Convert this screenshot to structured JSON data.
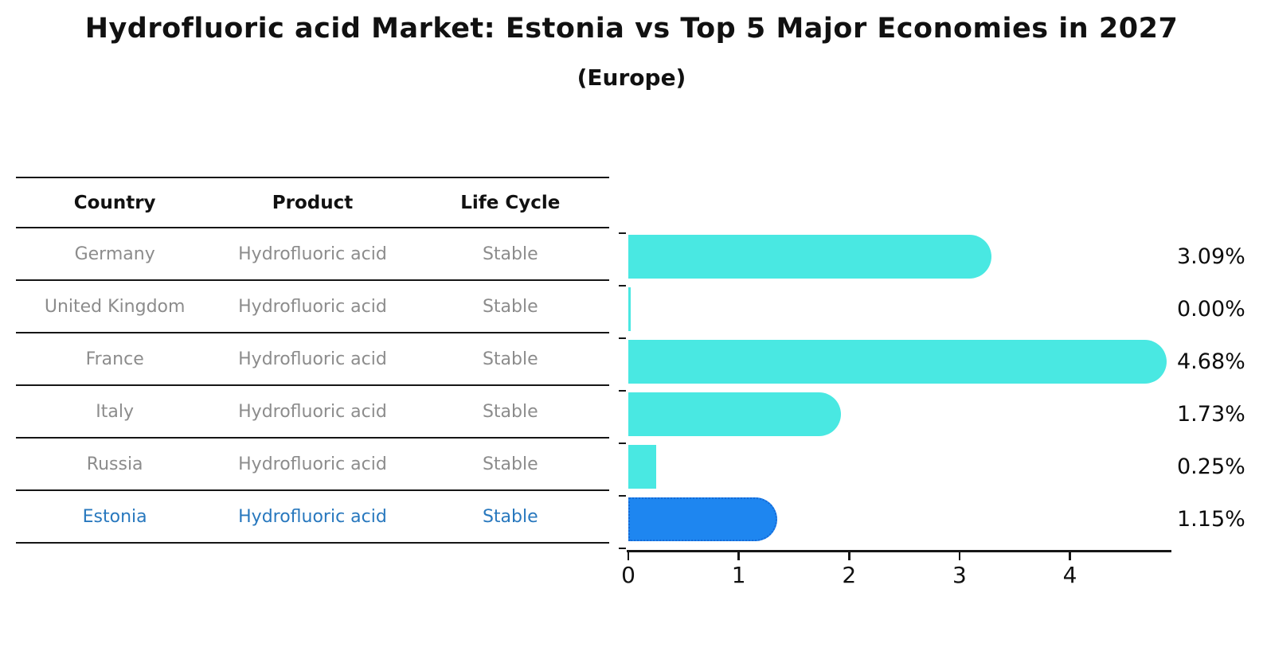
{
  "figure": {
    "title": "Hydrofluoric acid Market: Estonia vs Top 5 Major Economies in 2027",
    "subtitle": "(Europe)"
  },
  "table": {
    "headers": [
      "Country",
      "Product",
      "Life Cycle"
    ],
    "rows": [
      {
        "country": "Germany",
        "product": "Hydrofluoric acid",
        "life_cycle": "Stable",
        "highlighted": false
      },
      {
        "country": "United Kingdom",
        "product": "Hydrofluoric acid",
        "life_cycle": "Stable",
        "highlighted": false
      },
      {
        "country": "France",
        "product": "Hydrofluoric acid",
        "life_cycle": "Stable",
        "highlighted": false
      },
      {
        "country": "Italy",
        "product": "Hydrofluoric acid",
        "life_cycle": "Stable",
        "highlighted": false
      },
      {
        "country": "Russia",
        "product": "Hydrofluoric acid",
        "life_cycle": "Stable",
        "highlighted": false
      },
      {
        "country": "Estonia",
        "product": "Hydrofluoric acid",
        "life_cycle": "Stable",
        "highlighted": true
      }
    ]
  },
  "chart_data": {
    "type": "bar",
    "orientation": "horizontal",
    "title": "Hydrofluoric acid Market: Estonia vs Top 5 Major Economies in 2027 (Europe)",
    "categories": [
      "Germany",
      "United Kingdom",
      "France",
      "Italy",
      "Russia",
      "Estonia"
    ],
    "values": [
      3.09,
      0.0,
      4.68,
      1.73,
      0.25,
      1.15
    ],
    "value_labels": [
      "3.09%",
      "0.00%",
      "4.68%",
      "1.73%",
      "0.25%",
      "1.15%"
    ],
    "xlabel": "",
    "ylabel": "",
    "xlim": [
      0,
      4.905
    ],
    "x_ticks": [
      0,
      1,
      2,
      3,
      4
    ],
    "grid": false,
    "legend": false,
    "highlight_index": 5
  },
  "colors": {
    "bar": "#49e8e2",
    "highlight_bar": "#1e86f0",
    "highlight_bar_border": "#1569d6",
    "highlight_text": "#2878be",
    "row_text": "#8c8c8c",
    "header_text": "#111111",
    "line": "#161616",
    "value_label": "#0d0d0d"
  }
}
